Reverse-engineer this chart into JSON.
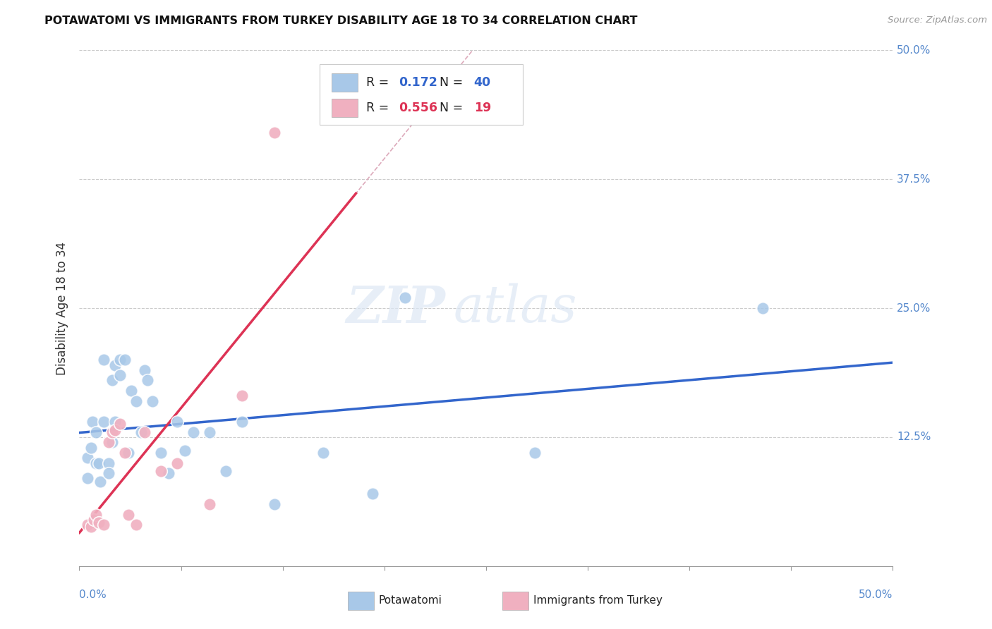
{
  "title": "POTAWATOMI VS IMMIGRANTS FROM TURKEY DISABILITY AGE 18 TO 34 CORRELATION CHART",
  "source": "Source: ZipAtlas.com",
  "ylabel": "Disability Age 18 to 34",
  "xlim": [
    0.0,
    0.5
  ],
  "ylim": [
    0.0,
    0.5
  ],
  "xticks": [
    0.0,
    0.0625,
    0.125,
    0.1875,
    0.25,
    0.3125,
    0.375,
    0.4375,
    0.5
  ],
  "yticks": [
    0.0,
    0.125,
    0.25,
    0.375,
    0.5
  ],
  "xlabels_shown": [
    "0.0%",
    "50.0%"
  ],
  "ylabels_right": [
    "50.0%",
    "37.5%",
    "25.0%",
    "12.5%"
  ],
  "legend1_label": "Potawatomi",
  "legend2_label": "Immigrants from Turkey",
  "r1": "0.172",
  "n1": "40",
  "r2": "0.556",
  "n2": "19",
  "color_blue": "#a8c8e8",
  "color_pink": "#f0b0c0",
  "color_blue_line": "#3366cc",
  "color_pink_line": "#dd3355",
  "color_pink_dashed": "#ddaabb",
  "color_tick": "#5588cc",
  "watermark_zip": "ZIP",
  "watermark_atlas": "atlas",
  "blue_x": [
    0.005,
    0.005,
    0.007,
    0.008,
    0.01,
    0.01,
    0.012,
    0.013,
    0.015,
    0.015,
    0.018,
    0.018,
    0.02,
    0.02,
    0.022,
    0.022,
    0.025,
    0.025,
    0.028,
    0.03,
    0.032,
    0.035,
    0.038,
    0.04,
    0.042,
    0.045,
    0.05,
    0.055,
    0.06,
    0.065,
    0.07,
    0.08,
    0.09,
    0.1,
    0.12,
    0.15,
    0.18,
    0.2,
    0.28,
    0.42
  ],
  "blue_y": [
    0.105,
    0.085,
    0.115,
    0.14,
    0.1,
    0.13,
    0.1,
    0.082,
    0.2,
    0.14,
    0.1,
    0.09,
    0.12,
    0.18,
    0.195,
    0.14,
    0.2,
    0.185,
    0.2,
    0.11,
    0.17,
    0.16,
    0.13,
    0.19,
    0.18,
    0.16,
    0.11,
    0.09,
    0.14,
    0.112,
    0.13,
    0.13,
    0.092,
    0.14,
    0.06,
    0.11,
    0.07,
    0.26,
    0.11,
    0.25
  ],
  "pink_x": [
    0.005,
    0.007,
    0.009,
    0.01,
    0.012,
    0.015,
    0.018,
    0.02,
    0.022,
    0.025,
    0.028,
    0.03,
    0.035,
    0.04,
    0.05,
    0.06,
    0.08,
    0.1,
    0.12
  ],
  "pink_y": [
    0.04,
    0.038,
    0.045,
    0.05,
    0.042,
    0.04,
    0.12,
    0.13,
    0.132,
    0.138,
    0.11,
    0.05,
    0.04,
    0.13,
    0.092,
    0.1,
    0.06,
    0.165,
    0.42
  ]
}
